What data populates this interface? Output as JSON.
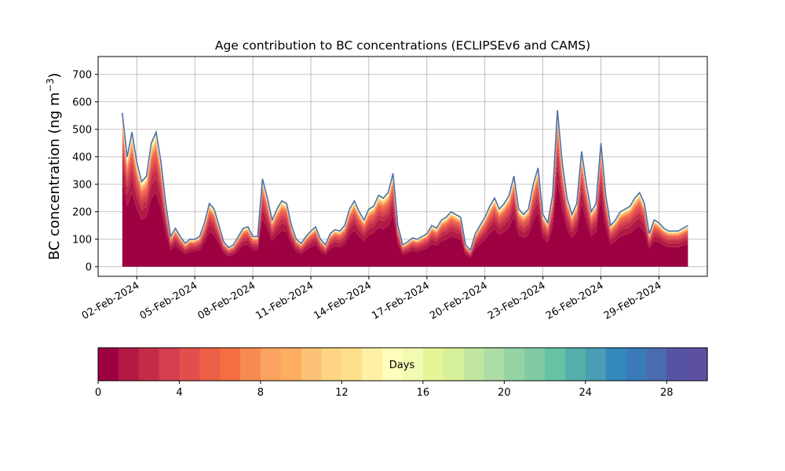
{
  "chart_data": [
    {
      "type": "area",
      "title": "Age contribution to BC concentrations (ECLIPSEv6 and CAMS)",
      "xlabel": "",
      "ylabel": "BC concentration (ng m",
      "ylabel_exponent": "−3",
      "ylabel_close": ")",
      "ylim": [
        -35,
        765
      ],
      "yticks": [
        0,
        100,
        200,
        300,
        400,
        500,
        600,
        700
      ],
      "xlim": [
        "2024-01-31T00:00",
        "2024-03-02T12:00"
      ],
      "xtick_labels": [
        "02-Feb-2024",
        "05-Feb-2024",
        "08-Feb-2024",
        "11-Feb-2024",
        "14-Feb-2024",
        "17-Feb-2024",
        "20-Feb-2024",
        "23-Feb-2024",
        "26-Feb-2024",
        "29-Feb-2024"
      ],
      "xtick_dates": [
        "2024-02-02",
        "2024-02-05",
        "2024-02-08",
        "2024-02-11",
        "2024-02-14",
        "2024-02-17",
        "2024-02-20",
        "2024-02-23",
        "2024-02-26",
        "2024-02-29"
      ],
      "grid": true,
      "series": [
        {
          "name": "total",
          "x": [
            "2024-02-01T06:00",
            "2024-02-01T12:00",
            "2024-02-01T18:00",
            "2024-02-02T00:00",
            "2024-02-02T06:00",
            "2024-02-02T12:00",
            "2024-02-02T18:00",
            "2024-02-03T00:00",
            "2024-02-03T06:00",
            "2024-02-03T12:00",
            "2024-02-03T18:00",
            "2024-02-04T00:00",
            "2024-02-04T06:00",
            "2024-02-04T12:00",
            "2024-02-04T18:00",
            "2024-02-05T00:00",
            "2024-02-05T06:00",
            "2024-02-05T12:00",
            "2024-02-05T18:00",
            "2024-02-06T00:00",
            "2024-02-06T06:00",
            "2024-02-06T12:00",
            "2024-02-06T18:00",
            "2024-02-07T00:00",
            "2024-02-07T06:00",
            "2024-02-07T12:00",
            "2024-02-07T18:00",
            "2024-02-08T00:00",
            "2024-02-08T06:00",
            "2024-02-08T12:00",
            "2024-02-08T18:00",
            "2024-02-09T00:00",
            "2024-02-09T06:00",
            "2024-02-09T12:00",
            "2024-02-09T18:00",
            "2024-02-10T00:00",
            "2024-02-10T06:00",
            "2024-02-10T12:00",
            "2024-02-10T18:00",
            "2024-02-11T00:00",
            "2024-02-11T06:00",
            "2024-02-11T12:00",
            "2024-02-11T18:00",
            "2024-02-12T00:00",
            "2024-02-12T06:00",
            "2024-02-12T12:00",
            "2024-02-12T18:00",
            "2024-02-13T00:00",
            "2024-02-13T06:00",
            "2024-02-13T12:00",
            "2024-02-13T18:00",
            "2024-02-14T00:00",
            "2024-02-14T06:00",
            "2024-02-14T12:00",
            "2024-02-14T18:00",
            "2024-02-15T00:00",
            "2024-02-15T06:00",
            "2024-02-15T12:00",
            "2024-02-15T18:00",
            "2024-02-16T00:00",
            "2024-02-16T06:00",
            "2024-02-16T12:00",
            "2024-02-16T18:00",
            "2024-02-17T00:00",
            "2024-02-17T06:00",
            "2024-02-17T12:00",
            "2024-02-17T18:00",
            "2024-02-18T00:00",
            "2024-02-18T06:00",
            "2024-02-18T12:00",
            "2024-02-18T18:00",
            "2024-02-19T00:00",
            "2024-02-19T06:00",
            "2024-02-19T12:00",
            "2024-02-19T18:00",
            "2024-02-20T00:00",
            "2024-02-20T06:00",
            "2024-02-20T12:00",
            "2024-02-20T18:00",
            "2024-02-21T00:00",
            "2024-02-21T06:00",
            "2024-02-21T12:00",
            "2024-02-21T18:00",
            "2024-02-22T00:00",
            "2024-02-22T06:00",
            "2024-02-22T12:00",
            "2024-02-22T18:00",
            "2024-02-23T00:00",
            "2024-02-23T06:00",
            "2024-02-23T12:00",
            "2024-02-23T18:00",
            "2024-02-24T00:00",
            "2024-02-24T06:00",
            "2024-02-24T12:00",
            "2024-02-24T18:00",
            "2024-02-25T00:00",
            "2024-02-25T06:00",
            "2024-02-25T12:00",
            "2024-02-25T18:00",
            "2024-02-26T00:00",
            "2024-02-26T06:00",
            "2024-02-26T12:00",
            "2024-02-26T18:00",
            "2024-02-27T00:00",
            "2024-02-27T06:00",
            "2024-02-27T12:00",
            "2024-02-27T18:00",
            "2024-02-28T00:00",
            "2024-02-28T06:00",
            "2024-02-28T12:00",
            "2024-02-28T18:00",
            "2024-02-29T00:00",
            "2024-02-29T06:00",
            "2024-02-29T12:00",
            "2024-02-29T18:00",
            "2024-03-01T00:00",
            "2024-03-01T06:00",
            "2024-03-01T12:00"
          ],
          "values": [
            560,
            400,
            490,
            380,
            310,
            330,
            450,
            490,
            380,
            230,
            110,
            140,
            110,
            85,
            100,
            100,
            110,
            160,
            230,
            210,
            150,
            90,
            70,
            80,
            110,
            140,
            145,
            110,
            110,
            320,
            250,
            170,
            210,
            240,
            230,
            150,
            100,
            85,
            110,
            130,
            145,
            100,
            80,
            120,
            135,
            130,
            150,
            210,
            240,
            200,
            170,
            210,
            220,
            260,
            250,
            270,
            340,
            150,
            80,
            90,
            105,
            100,
            110,
            120,
            150,
            140,
            170,
            180,
            200,
            190,
            180,
            80,
            60,
            120,
            150,
            180,
            220,
            250,
            210,
            230,
            260,
            330,
            210,
            190,
            210,
            300,
            360,
            190,
            160,
            260,
            570,
            380,
            250,
            190,
            230,
            420,
            300,
            200,
            230,
            450,
            260,
            150,
            170,
            200,
            210,
            220,
            250,
            270,
            230,
            120,
            170,
            160,
            140,
            130,
            130,
            130,
            140,
            150
          ],
          "color": "#4f6fab"
        }
      ],
      "age_bands_note": "Stacked age contribution bands from 0 to 30 days",
      "colorbar": {
        "label": "Days",
        "range": [
          0,
          30
        ],
        "ticks": [
          0,
          4,
          8,
          12,
          16,
          20,
          24,
          28
        ],
        "levels": 30,
        "colormap": "Spectral",
        "colors": [
          "#9e0142",
          "#b01a45",
          "#c42d47",
          "#d53e4f",
          "#e24f4b",
          "#ec5f47",
          "#f46d43",
          "#f88b51",
          "#fba35e",
          "#fdae61",
          "#fdc275",
          "#fed683",
          "#fee08b",
          "#fff0a6",
          "#fffdbc",
          "#f3fab1",
          "#e6f598",
          "#d6ef9b",
          "#c1e6a0",
          "#abdda4",
          "#93d3a4",
          "#80cba4",
          "#66c2a5",
          "#55b0aa",
          "#4a9db4",
          "#3288bd",
          "#3a7ab9",
          "#4a6bb1",
          "#5753a4",
          "#5e4fa2"
        ]
      }
    }
  ]
}
